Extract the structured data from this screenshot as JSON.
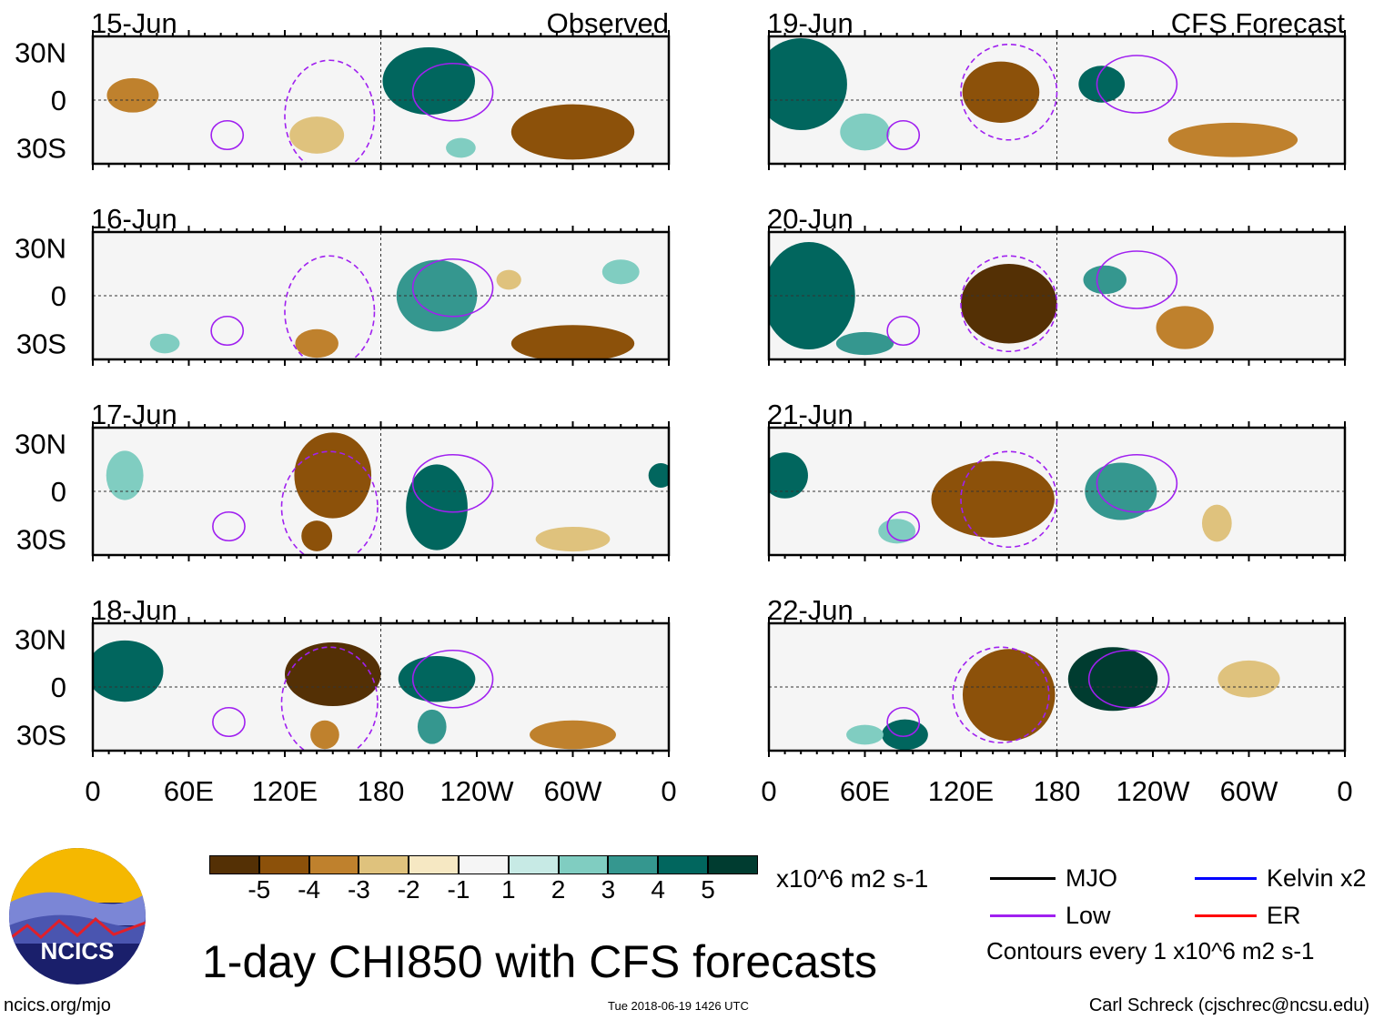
{
  "chart_data": {
    "type": "heatmap",
    "title": "1-day CHI850 with CFS forecasts",
    "units": "x10^6 m2 s-1",
    "lon_ticks": [
      "0",
      "60E",
      "120E",
      "180",
      "120W",
      "60W",
      "0"
    ],
    "lat_ticks": [
      "30N",
      "0",
      "30S"
    ],
    "lon_range": [
      0,
      360
    ],
    "lat_range": [
      -40,
      40
    ],
    "column_labels": {
      "left": "Observed",
      "right": "CFS Forecast"
    },
    "colorbar": {
      "levels": [
        "-5",
        "-4",
        "-3",
        "-2",
        "-1",
        "1",
        "2",
        "3",
        "4",
        "5"
      ],
      "colors": [
        "#543005",
        "#8c510a",
        "#bf812d",
        "#dfc27d",
        "#f6e8c3",
        "#f5f5f5",
        "#c7eae5",
        "#80cdc1",
        "#35978f",
        "#01665e",
        "#003c30"
      ]
    },
    "panels": [
      {
        "date": "15-Jun",
        "col": "left",
        "features": [
          [
            210,
            12,
            30,
            22,
            4
          ],
          [
            300,
            -20,
            40,
            18,
            -4
          ],
          [
            25,
            3,
            18,
            12,
            -3
          ],
          [
            140,
            -22,
            22,
            15,
            -2
          ],
          [
            230,
            -30,
            12,
            8,
            2
          ]
        ],
        "low": [
          [
            84,
            -22,
            10,
            9,
            0
          ],
          [
            225,
            5,
            25,
            18,
            0
          ],
          [
            148,
            -10,
            28,
            35,
            1
          ]
        ]
      },
      {
        "date": "16-Jun",
        "col": "left",
        "features": [
          [
            215,
            0,
            28,
            25,
            3
          ],
          [
            300,
            -30,
            40,
            12,
            -4
          ],
          [
            140,
            -30,
            15,
            10,
            -3
          ],
          [
            45,
            -30,
            12,
            8,
            2
          ],
          [
            330,
            15,
            15,
            10,
            2
          ],
          [
            260,
            10,
            10,
            8,
            -2
          ]
        ],
        "low": [
          [
            84,
            -22,
            10,
            9,
            0
          ],
          [
            225,
            5,
            25,
            18,
            0
          ],
          [
            148,
            -10,
            28,
            35,
            1
          ]
        ]
      },
      {
        "date": "17-Jun",
        "col": "left",
        "features": [
          [
            150,
            10,
            25,
            28,
            -4
          ],
          [
            140,
            -28,
            10,
            10,
            -4
          ],
          [
            215,
            -10,
            20,
            28,
            4
          ],
          [
            20,
            10,
            15,
            20,
            2
          ],
          [
            355,
            10,
            8,
            8,
            4
          ],
          [
            300,
            -30,
            30,
            10,
            -2
          ]
        ],
        "low": [
          [
            85,
            -22,
            10,
            9,
            0
          ],
          [
            225,
            5,
            25,
            18,
            0
          ],
          [
            148,
            -10,
            30,
            35,
            1
          ]
        ]
      },
      {
        "date": "18-Jun",
        "col": "left",
        "features": [
          [
            150,
            8,
            30,
            20,
            -5
          ],
          [
            20,
            10,
            25,
            20,
            4
          ],
          [
            215,
            5,
            25,
            15,
            4
          ],
          [
            212,
            -25,
            10,
            12,
            3
          ],
          [
            300,
            -30,
            30,
            10,
            -3
          ],
          [
            145,
            -30,
            10,
            10,
            -3
          ]
        ],
        "low": [
          [
            85,
            -22,
            10,
            9,
            0
          ],
          [
            225,
            5,
            25,
            18,
            0
          ],
          [
            148,
            -10,
            30,
            35,
            1
          ]
        ]
      },
      {
        "date": "19-Jun",
        "col": "right",
        "features": [
          [
            20,
            10,
            30,
            30,
            4
          ],
          [
            208,
            10,
            15,
            12,
            4
          ],
          [
            145,
            5,
            25,
            20,
            -4
          ],
          [
            290,
            -25,
            45,
            12,
            -3
          ],
          [
            60,
            -20,
            20,
            15,
            2
          ]
        ],
        "low": [
          [
            84,
            -22,
            10,
            9,
            0
          ],
          [
            230,
            10,
            25,
            18,
            0
          ],
          [
            150,
            5,
            30,
            30,
            1
          ]
        ]
      },
      {
        "date": "20-Jun",
        "col": "right",
        "features": [
          [
            25,
            0,
            30,
            35,
            4
          ],
          [
            150,
            -5,
            30,
            25,
            -5
          ],
          [
            210,
            10,
            15,
            10,
            3
          ],
          [
            260,
            -20,
            20,
            15,
            -3
          ],
          [
            60,
            -30,
            20,
            8,
            3
          ]
        ],
        "low": [
          [
            84,
            -22,
            10,
            9,
            0
          ],
          [
            230,
            10,
            25,
            18,
            0
          ],
          [
            150,
            -5,
            30,
            30,
            1
          ]
        ]
      },
      {
        "date": "21-Jun",
        "col": "right",
        "features": [
          [
            140,
            -5,
            40,
            25,
            -4
          ],
          [
            220,
            0,
            25,
            20,
            3
          ],
          [
            10,
            10,
            15,
            15,
            4
          ],
          [
            280,
            -20,
            12,
            15,
            -2
          ],
          [
            80,
            -25,
            15,
            10,
            2
          ]
        ],
        "low": [
          [
            84,
            -22,
            10,
            9,
            0
          ],
          [
            230,
            5,
            25,
            18,
            0
          ],
          [
            150,
            -5,
            30,
            30,
            1
          ]
        ]
      },
      {
        "date": "22-Jun",
        "col": "right",
        "features": [
          [
            215,
            5,
            28,
            20,
            5
          ],
          [
            150,
            -5,
            30,
            30,
            -4
          ],
          [
            85,
            -30,
            15,
            10,
            4
          ],
          [
            60,
            -30,
            15,
            8,
            2
          ],
          [
            300,
            5,
            25,
            15,
            -2
          ]
        ],
        "low": [
          [
            84,
            -22,
            10,
            9,
            0
          ],
          [
            225,
            5,
            25,
            18,
            0
          ],
          [
            145,
            -5,
            30,
            30,
            1
          ]
        ]
      }
    ]
  },
  "legend": {
    "mjo": "MJO",
    "low": "Low",
    "kelvin": "Kelvin x2",
    "er": "ER",
    "contours": "Contours every 1 x10^6 m2 s-1",
    "colors": {
      "mjo": "#000000",
      "low": "#a020f0",
      "kelvin": "#0000ff",
      "er": "#ff0000"
    }
  },
  "logo": {
    "text": "NCICS"
  },
  "footer": {
    "url": "ncics.org/mjo",
    "timestamp": "Tue 2018-06-19 1426 UTC",
    "author": "Carl Schreck (cjschrec@ncsu.edu)"
  }
}
